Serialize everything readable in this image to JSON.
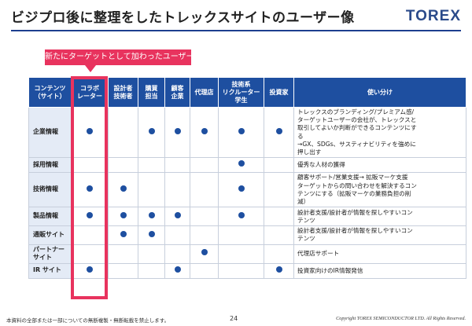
{
  "header": {
    "title": "ビジプロ後に整理をしたトレックスサイトのユーザー像",
    "logo": "TOREX"
  },
  "callout": {
    "label": "新たにターゲットとして加わったユーザー"
  },
  "table": {
    "columns": [
      "コンテンツ\n（サイト）",
      "コラボ\nレーター",
      "設計者\n技術者",
      "購買\n担当",
      "顧客\n企業",
      "代理店",
      "技術系\nリクルーター\n学生",
      "投資家",
      "使い分け"
    ],
    "rows": [
      {
        "name": "企業情報",
        "marks": [
          true,
          false,
          true,
          true,
          true,
          true,
          true
        ],
        "usage": "トレックスのブランディング/プレミアム感/\nターゲットユーザーの会社が、トレックスと\n取引してよいか判断ができるコンテンツにす\nる\n→GX、SDGs、サスティナビリティを強めに\n押し出す"
      },
      {
        "name": "採用情報",
        "marks": [
          false,
          false,
          false,
          false,
          false,
          true,
          false
        ],
        "usage": "優秀な人材の獲得"
      },
      {
        "name": "技術情報",
        "marks": [
          true,
          true,
          false,
          false,
          false,
          true,
          false
        ],
        "usage": "顧客サポート/営業支援→ 拡販マーケ支援\nターゲットからの問い合わせを解決するコン\nテンツにする（拡販マーケの業務負担の削\n減）"
      },
      {
        "name": "製品情報",
        "marks": [
          true,
          true,
          true,
          true,
          false,
          true,
          false
        ],
        "usage": "設計者支援/設計者が情報を探しやすいコン\nテンツ"
      },
      {
        "name": "通販サイト",
        "marks": [
          false,
          true,
          true,
          false,
          false,
          false,
          false
        ],
        "usage": "設計者支援/設計者が情報を探しやすいコン\nテンツ"
      },
      {
        "name": "パートナー\nサイト",
        "marks": [
          false,
          false,
          false,
          false,
          true,
          false,
          false
        ],
        "usage": "代理店サポート"
      },
      {
        "name": "IR サイト",
        "marks": [
          true,
          false,
          false,
          true,
          false,
          false,
          true
        ],
        "usage": "投資家向けのIR情報発信"
      }
    ]
  },
  "colors": {
    "header_blue": "#1e4fa0",
    "highlight_pink": "#e8335e",
    "rowname_bg": "#e4ebf6"
  },
  "footer": {
    "note": "本資料の全部または一部についての無断複製・無断転載を禁止します。",
    "page": "24",
    "copyright": "Copyright TOREX SEMICONDUCTOR LTD. All Rights Reserved."
  }
}
